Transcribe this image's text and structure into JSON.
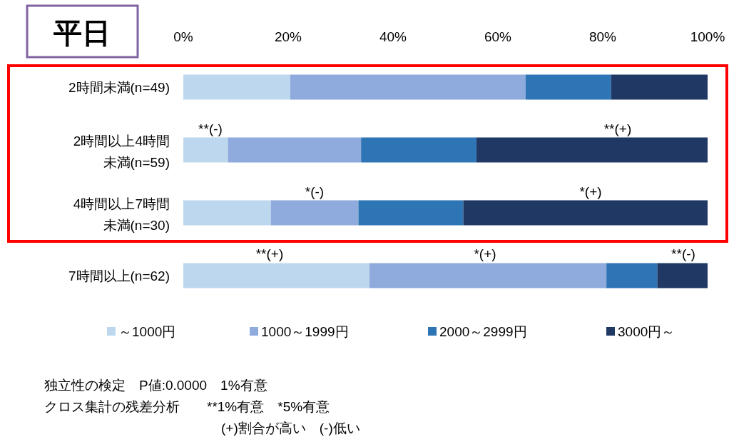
{
  "chart_data": {
    "type": "bar",
    "orientation": "horizontal",
    "stacked": true,
    "title": "平日",
    "categories": [
      "2時間未満(n=49)",
      "2時間以上4時間未満(n=59)",
      "4時間以上7時間未満(n=30)",
      "7時間以上(n=62)"
    ],
    "series": [
      {
        "name": "～1000円",
        "color": "#bdd7ee",
        "values": [
          20.4,
          8.5,
          16.7,
          35.5
        ]
      },
      {
        "name": "1000～1999円",
        "color": "#8faadc",
        "values": [
          44.9,
          25.4,
          16.7,
          45.2
        ]
      },
      {
        "name": "2000～2999円",
        "color": "#2e75b6",
        "values": [
          16.3,
          22.0,
          20.0,
          9.7
        ]
      },
      {
        "name": "3000円～",
        "color": "#1f3864",
        "values": [
          18.4,
          44.1,
          46.6,
          9.6
        ]
      }
    ],
    "xlim": [
      0,
      100
    ],
    "xticks": [
      {
        "value": 0,
        "label": "0%"
      },
      {
        "value": 20,
        "label": "20%"
      },
      {
        "value": 40,
        "label": "40%"
      },
      {
        "value": 60,
        "label": "60%"
      },
      {
        "value": 80,
        "label": "80%"
      },
      {
        "value": 100,
        "label": "100%"
      }
    ],
    "grid": false,
    "legend": "bottom",
    "annotations": [
      "**(-)",
      "**(+)",
      "*(-)",
      "*(+)",
      "**(+)",
      "*(+)",
      "**(-)",
      "独立性の検定　P値:0.0000　1%有意",
      "クロス集計の残差分析　　**1%有意　*5%有意",
      "(+)割合が高い　(-)低い"
    ]
  }
}
